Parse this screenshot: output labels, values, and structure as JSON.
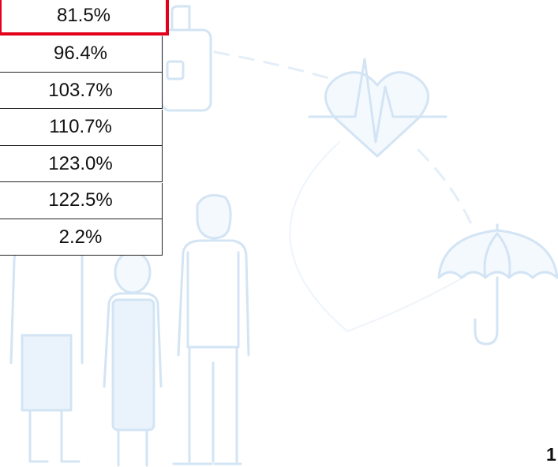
{
  "table": {
    "rows": [
      "81.5%",
      "96.4%",
      "103.7%",
      "110.7%",
      "123.0%",
      "122.5%",
      "2.2%"
    ]
  },
  "page_number": "1"
}
